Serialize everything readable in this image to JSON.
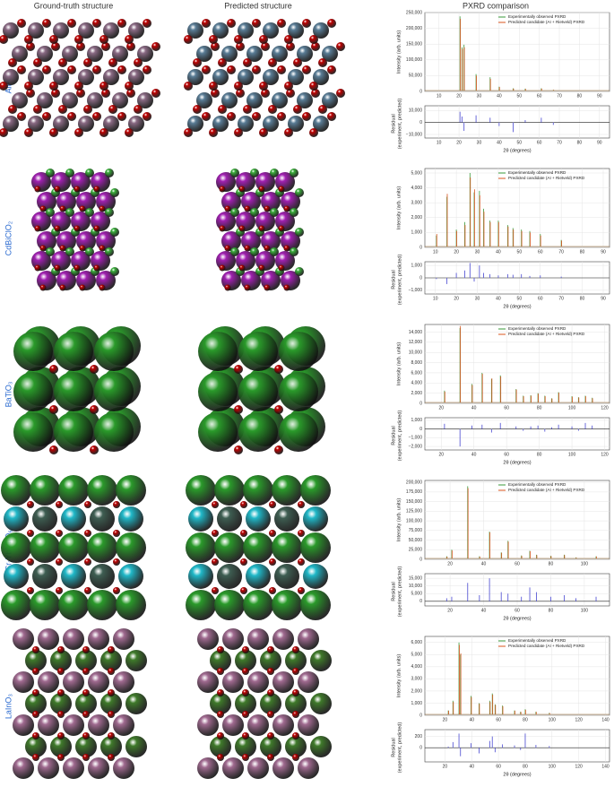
{
  "headers": {
    "ground_truth": "Ground-truth structure",
    "predicted": "Predicted structure",
    "pxrd": "PXRD comparison"
  },
  "rows": [
    {
      "label": "AlPO₄",
      "chart_data": {
        "type": "peaks",
        "xlabel": "2θ (degrees)",
        "ylabel": "Intensity (arb. units)",
        "x": [
          20.5,
          21.5,
          22.5,
          28.5,
          35.5,
          40,
          47,
          53,
          61,
          67
        ],
        "series": [
          {
            "name": "Experimentally observed PXRD",
            "color": "#3a9a3a",
            "values": [
              238000,
              140000,
              148000,
              55000,
              45000,
              15000,
              10000,
              9000,
              10000,
              5000
            ]
          },
          {
            "name": "Predicted candidate (AI + Rietveld) PXRD",
            "color": "#d9541e",
            "values": [
              230000,
              135000,
              140000,
              50000,
              40000,
              14000,
              9000,
              8000,
              9000,
              5000
            ]
          }
        ],
        "xlim": [
          3,
          95
        ],
        "xticks": [
          10,
          20,
          30,
          40,
          50,
          60,
          70,
          80,
          90
        ],
        "ylim": [
          0,
          250000
        ],
        "yticks": [
          0,
          {
            "value": 50000,
            "label": "50,000"
          },
          {
            "value": 100000,
            "label": "100,000"
          },
          {
            "value": 150000,
            "label": "150,000"
          },
          {
            "value": 200000,
            "label": "200,000"
          },
          {
            "value": 250000,
            "label": "250,000"
          }
        ],
        "residual": {
          "ylabel": [
            "Residual",
            "(experiment, predicted)"
          ],
          "color": "#5b5bd6",
          "values": [
            9000,
            5000,
            -7000,
            6000,
            4000,
            -3000,
            -8000,
            2000,
            4000,
            -2000
          ],
          "ylim": [
            -13000,
            14000
          ],
          "yticks": [
            {
              "value": -10000,
              "label": "−10,000"
            },
            0,
            {
              "value": 10000,
              "label": "10,000"
            }
          ]
        }
      }
    },
    {
      "label": "CdBiClO₂",
      "chart_data": {
        "type": "peaks",
        "xlabel": "2θ (degrees)",
        "ylabel": "Intensity (arb. units)",
        "x": [
          10.5,
          15.5,
          20,
          24,
          26.5,
          28.5,
          31,
          33,
          36,
          40,
          44.5,
          47,
          51,
          55,
          60,
          70
        ],
        "series": [
          {
            "name": "Experimentally observed PXRD",
            "color": "#3a9a3a",
            "values": [
              800,
              3400,
              1200,
              1700,
              5000,
              3700,
              3800,
              2600,
              1800,
              1800,
              1500,
              1300,
              1200,
              1100,
              900,
              500
            ]
          },
          {
            "name": "Predicted candidate (AI + Rietveld) PXRD",
            "color": "#d9541e",
            "values": [
              900,
              3600,
              1100,
              1500,
              4700,
              3900,
              3500,
              2400,
              1700,
              1700,
              1400,
              1200,
              1100,
              1000,
              800,
              450
            ]
          }
        ],
        "xlim": [
          5,
          93
        ],
        "xticks": [
          10,
          20,
          30,
          40,
          50,
          60,
          70,
          80,
          90
        ],
        "ylim": [
          0,
          5300
        ],
        "yticks": [
          0,
          {
            "value": 1000,
            "label": "1,000"
          },
          {
            "value": 2000,
            "label": "2,000"
          },
          {
            "value": 3000,
            "label": "3,000"
          },
          {
            "value": 4000,
            "label": "4,000"
          },
          {
            "value": 5000,
            "label": "5,000"
          }
        ],
        "residual": {
          "ylabel": [
            "Residual",
            "(experiment, predicted)"
          ],
          "color": "#5b5bd6",
          "values": [
            -100,
            -500,
            400,
            600,
            1200,
            -300,
            1000,
            400,
            300,
            200,
            300,
            250,
            300,
            150,
            200,
            100
          ],
          "ylim": [
            -1300,
            1300
          ],
          "yticks": [
            {
              "value": -1000,
              "label": "−1,000"
            },
            0,
            {
              "value": 1000,
              "label": "1,000"
            }
          ]
        }
      }
    },
    {
      "label": "BaTiO₃",
      "chart_data": {
        "type": "peaks",
        "xlabel": "2θ (degrees)",
        "ylabel": "Intensity (arb. units)",
        "x": [
          22,
          31.5,
          38.8,
          45,
          50.8,
          56.2,
          65.8,
          70.2,
          74.8,
          79.2,
          83.4,
          87.6,
          91.8,
          100,
          104,
          108.2,
          112.4
        ],
        "series": [
          {
            "name": "Experimentally observed PXRD",
            "color": "#3a9a3a",
            "values": [
              2500,
              14800,
              3800,
              6000,
              4800,
              5500,
              2800,
              1500,
              1600,
              2000,
              1500,
              1000,
              2200,
              1400,
              1200,
              1500,
              1100
            ]
          },
          {
            "name": "Predicted candidate (AI + Rietveld) PXRD",
            "color": "#d9541e",
            "values": [
              2300,
              15200,
              3600,
              5800,
              4900,
              5300,
              2700,
              1400,
              1500,
              1900,
              1400,
              950,
              2100,
              1300,
              1150,
              1400,
              1000
            ]
          }
        ],
        "xlim": [
          10,
          123
        ],
        "xticks": [
          20,
          40,
          60,
          80,
          100,
          120
        ],
        "ylim": [
          0,
          15500
        ],
        "yticks": [
          0,
          {
            "value": 2000,
            "label": "2,000"
          },
          {
            "value": 4000,
            "label": "4,000"
          },
          {
            "value": 6000,
            "label": "6,000"
          },
          {
            "value": 8000,
            "label": "8,000"
          },
          {
            "value": 10000,
            "label": "10,000"
          },
          {
            "value": 12000,
            "label": "12,000"
          },
          {
            "value": 14000,
            "label": "14,000"
          }
        ],
        "residual": {
          "ylabel": [
            "Residual",
            "(experiment, predicted)"
          ],
          "color": "#5b5bd6",
          "values": [
            600,
            -2000,
            400,
            500,
            -400,
            700,
            300,
            -200,
            300,
            400,
            -300,
            200,
            500,
            300,
            -200,
            700,
            400
          ],
          "ylim": [
            -2400,
            1300
          ],
          "yticks": [
            {
              "value": -2000,
              "label": "−2,000"
            },
            {
              "value": -1000,
              "label": "−1,000"
            },
            0,
            {
              "value": 1000,
              "label": "1,000"
            }
          ]
        }
      }
    },
    {
      "label": "Sr₂YbNbO₆",
      "chart_data": {
        "type": "peaks",
        "xlabel": "2θ (degrees)",
        "ylabel": "Intensity (arb. units)",
        "x": [
          18,
          21,
          30.5,
          37.5,
          43.5,
          50.5,
          54.5,
          62.5,
          67.5,
          71.5,
          80,
          88,
          95,
          107
        ],
        "series": [
          {
            "name": "Experimentally observed PXRD",
            "color": "#3a9a3a",
            "values": [
              8000,
              25000,
              190000,
              8000,
              72000,
              18000,
              48000,
              10000,
              22000,
              12000,
              9000,
              12000,
              5000,
              8000
            ]
          },
          {
            "name": "Predicted candidate (AI + Rietveld) PXRD",
            "color": "#d9541e",
            "values": [
              7000,
              23000,
              185000,
              7000,
              70000,
              17000,
              46000,
              9000,
              21000,
              11000,
              8500,
              11000,
              4500,
              7500
            ]
          }
        ],
        "xlim": [
          5,
          115
        ],
        "xticks": [
          20,
          40,
          60,
          80,
          100
        ],
        "ylim": [
          0,
          205000
        ],
        "yticks": [
          0,
          {
            "value": 25000,
            "label": "25,000"
          },
          {
            "value": 50000,
            "label": "50,000"
          },
          {
            "value": 75000,
            "label": "75,000"
          },
          {
            "value": 100000,
            "label": "100,000"
          },
          {
            "value": 125000,
            "label": "125,000"
          },
          {
            "value": 150000,
            "label": "150,000"
          },
          {
            "value": 175000,
            "label": "175,000"
          },
          {
            "value": 200000,
            "label": "200,000"
          }
        ],
        "residual": {
          "ylabel": [
            "Residual",
            "(experiment, predicted)"
          ],
          "color": "#5b5bd6",
          "values": [
            2000,
            3000,
            12000,
            4000,
            15000,
            6000,
            5000,
            3000,
            9000,
            6000,
            3000,
            4000,
            2000,
            3000
          ],
          "ylim": [
            -3000,
            18000
          ],
          "yticks": [
            0,
            {
              "value": 5000,
              "label": "5,000"
            },
            {
              "value": 10000,
              "label": "10,000"
            },
            {
              "value": 15000,
              "label": "15,000"
            }
          ]
        }
      }
    },
    {
      "label": "LaInO₃",
      "chart_data": {
        "type": "peaks",
        "xlabel": "2θ (degrees)",
        "ylabel": "Intensity (arb. units)",
        "x": [
          22.5,
          26,
          30.5,
          31.6,
          39.5,
          45.5,
          53.5,
          55.4,
          57.5,
          63,
          72,
          76.5,
          80,
          88,
          98
        ],
        "series": [
          {
            "name": "Experimentally observed PXRD",
            "color": "#3a9a3a",
            "values": [
              400,
              1200,
              6000,
              5000,
              1600,
              1000,
              1200,
              1800,
              900,
              800,
              400,
              300,
              500,
              300,
              200
            ]
          },
          {
            "name": "Predicted candidate (AI + Rietveld) PXRD",
            "color": "#d9541e",
            "values": [
              380,
              1100,
              5800,
              5100,
              1500,
              950,
              1100,
              1700,
              850,
              750,
              380,
              280,
              450,
              280,
              180
            ]
          }
        ],
        "xlim": [
          5,
          143
        ],
        "xticks": [
          20,
          40,
          60,
          80,
          100,
          120,
          140
        ],
        "ylim": [
          0,
          6500
        ],
        "yticks": [
          0,
          {
            "value": 1000,
            "label": "1,000"
          },
          {
            "value": 2000,
            "label": "2,000"
          },
          {
            "value": 3000,
            "label": "3,000"
          },
          {
            "value": 4000,
            "label": "4,000"
          },
          {
            "value": 5000,
            "label": "5,000"
          },
          {
            "value": 6000,
            "label": "6,000"
          }
        ],
        "residual": {
          "ylabel": [
            "Residual",
            "(experiment, predicted)"
          ],
          "color": "#5b5bd6",
          "values": [
            20,
            100,
            250,
            -150,
            80,
            -100,
            120,
            200,
            -80,
            60,
            40,
            -40,
            250,
            50,
            30
          ],
          "ylim": [
            -250,
            320
          ],
          "yticks": [
            0,
            200
          ]
        }
      }
    }
  ]
}
